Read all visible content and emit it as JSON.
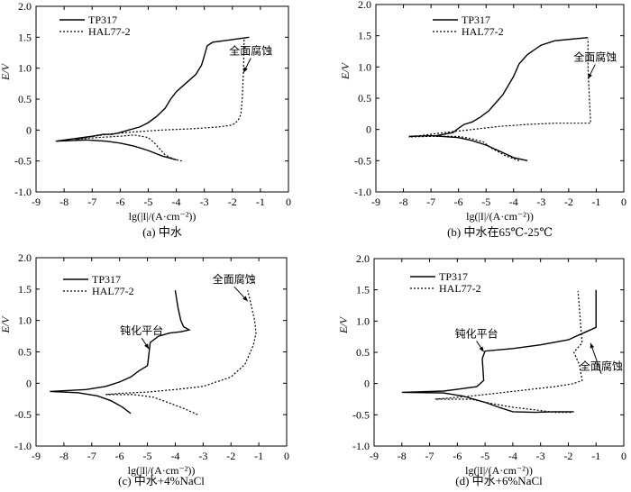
{
  "chart_data": [
    {
      "type": "line",
      "caption": "(a) 中水",
      "xlabel": "lg(|I|/(A·cm⁻²))",
      "ylabel": "E/V",
      "xlim": [
        -9,
        0
      ],
      "ylim": [
        -1.0,
        2.0
      ],
      "xticks": [
        "-9",
        "-8",
        "-7",
        "-6",
        "-5",
        "-4",
        "-3",
        "-2",
        "-1",
        "0"
      ],
      "yticks": [
        "-1.0",
        "-0.5",
        "0",
        "0.5",
        "1.0",
        "1.5",
        "2.0"
      ],
      "legend": [
        "TP317",
        "HAL77-2"
      ],
      "series": [
        {
          "name": "TP317",
          "style": "solid",
          "points": [
            [
              -4.0,
              -0.48
            ],
            [
              -4.5,
              -0.42
            ],
            [
              -5.0,
              -0.33
            ],
            [
              -5.5,
              -0.26
            ],
            [
              -6.0,
              -0.21
            ],
            [
              -6.5,
              -0.18
            ],
            [
              -7.2,
              -0.16
            ],
            [
              -8.3,
              -0.18
            ],
            [
              -7.0,
              -0.1
            ],
            [
              -6.6,
              -0.07
            ],
            [
              -6.3,
              -0.07
            ],
            [
              -6.1,
              -0.05
            ],
            [
              -5.7,
              0.0
            ],
            [
              -5.3,
              0.05
            ],
            [
              -5.0,
              0.12
            ],
            [
              -4.7,
              0.22
            ],
            [
              -4.4,
              0.35
            ],
            [
              -4.2,
              0.5
            ],
            [
              -4.0,
              0.62
            ],
            [
              -3.8,
              0.7
            ],
            [
              -3.6,
              0.78
            ],
            [
              -3.3,
              0.9
            ],
            [
              -3.1,
              1.05
            ],
            [
              -3.0,
              1.2
            ],
            [
              -2.9,
              1.36
            ],
            [
              -2.7,
              1.42
            ],
            [
              -2.2,
              1.45
            ],
            [
              -1.4,
              1.5
            ]
          ]
        },
        {
          "name": "HAL77-2",
          "style": "dotted",
          "points": [
            [
              -3.8,
              -0.5
            ],
            [
              -4.1,
              -0.47
            ],
            [
              -4.4,
              -0.4
            ],
            [
              -4.6,
              -0.3
            ],
            [
              -4.8,
              -0.2
            ],
            [
              -5.0,
              -0.12
            ],
            [
              -5.5,
              -0.08
            ],
            [
              -6.0,
              -0.1
            ],
            [
              -6.8,
              -0.12
            ],
            [
              -7.6,
              -0.15
            ],
            [
              -6.5,
              -0.07
            ],
            [
              -5.5,
              -0.03
            ],
            [
              -4.5,
              0.0
            ],
            [
              -3.5,
              0.02
            ],
            [
              -2.5,
              0.05
            ],
            [
              -2.0,
              0.08
            ],
            [
              -1.8,
              0.15
            ],
            [
              -1.7,
              0.25
            ],
            [
              -1.65,
              0.5
            ],
            [
              -1.6,
              1.0
            ],
            [
              -1.58,
              1.48
            ]
          ]
        }
      ],
      "annotations": [
        {
          "text": "全面腐蚀",
          "at": [
            -1.6,
            0.9
          ]
        }
      ]
    },
    {
      "type": "line",
      "caption": "(b) 中水在65℃-25℃",
      "xlabel": "lg(|I|/(A·cm⁻²))",
      "ylabel": "E/V",
      "xlim": [
        -9,
        0
      ],
      "ylim": [
        -1.0,
        2.0
      ],
      "xticks": [
        "-9",
        "-8",
        "-7",
        "-6",
        "-5",
        "-4",
        "-3",
        "-2",
        "-1",
        "0"
      ],
      "yticks": [
        "-1.0",
        "-0.5",
        "0",
        "0.5",
        "1.0",
        "1.5",
        "2.0"
      ],
      "legend": [
        "TP317",
        "HAL77-2"
      ],
      "series": [
        {
          "name": "TP317",
          "style": "solid",
          "points": [
            [
              -3.5,
              -0.5
            ],
            [
              -4.0,
              -0.45
            ],
            [
              -4.5,
              -0.35
            ],
            [
              -5.0,
              -0.25
            ],
            [
              -5.5,
              -0.18
            ],
            [
              -6.0,
              -0.13
            ],
            [
              -7.0,
              -0.1
            ],
            [
              -7.8,
              -0.11
            ],
            [
              -6.8,
              -0.1
            ],
            [
              -6.2,
              -0.05
            ],
            [
              -6.0,
              0.02
            ],
            [
              -5.8,
              0.08
            ],
            [
              -5.5,
              0.12
            ],
            [
              -5.2,
              0.2
            ],
            [
              -4.9,
              0.3
            ],
            [
              -4.6,
              0.45
            ],
            [
              -4.4,
              0.55
            ],
            [
              -4.2,
              0.7
            ],
            [
              -4.0,
              0.85
            ],
            [
              -3.8,
              1.05
            ],
            [
              -3.5,
              1.2
            ],
            [
              -3.0,
              1.35
            ],
            [
              -2.5,
              1.42
            ],
            [
              -1.3,
              1.47
            ]
          ]
        },
        {
          "name": "HAL77-2",
          "style": "dotted",
          "points": [
            [
              -3.8,
              -0.5
            ],
            [
              -4.3,
              -0.42
            ],
            [
              -4.8,
              -0.3
            ],
            [
              -5.1,
              -0.2
            ],
            [
              -5.5,
              -0.15
            ],
            [
              -6.0,
              -0.11
            ],
            [
              -7.0,
              -0.11
            ],
            [
              -7.8,
              -0.12
            ],
            [
              -6.5,
              -0.05
            ],
            [
              -5.5,
              0.0
            ],
            [
              -4.5,
              0.05
            ],
            [
              -3.5,
              0.08
            ],
            [
              -2.5,
              0.1
            ],
            [
              -1.2,
              0.1
            ],
            [
              -1.25,
              0.5
            ],
            [
              -1.3,
              1.0
            ],
            [
              -1.3,
              1.45
            ]
          ]
        }
      ],
      "annotations": [
        {
          "text": "全面腐蚀",
          "at": [
            -1.3,
            0.78
          ]
        }
      ]
    },
    {
      "type": "line",
      "caption": "(c) 中水+4%NaCl",
      "xlabel": "lg(|I|/(A·cm⁻²))",
      "ylabel": "E/V",
      "xlim": [
        -9,
        0
      ],
      "ylim": [
        -1.0,
        2.0
      ],
      "xticks": [
        "-9",
        "-8",
        "-7",
        "-6",
        "-5",
        "-4",
        "-3",
        "-2",
        "-1",
        "0"
      ],
      "yticks": [
        "-1.0",
        "-0.5",
        "0",
        "0.5",
        "1.0",
        "1.5",
        "2.0"
      ],
      "legend": [
        "TP317",
        "HAL77-2"
      ],
      "series": [
        {
          "name": "TP317",
          "style": "solid",
          "points": [
            [
              -5.6,
              -0.48
            ],
            [
              -5.9,
              -0.38
            ],
            [
              -6.3,
              -0.28
            ],
            [
              -6.8,
              -0.2
            ],
            [
              -7.5,
              -0.15
            ],
            [
              -8.5,
              -0.13
            ],
            [
              -7.2,
              -0.1
            ],
            [
              -6.5,
              -0.05
            ],
            [
              -6.0,
              0.02
            ],
            [
              -5.6,
              0.1
            ],
            [
              -5.3,
              0.2
            ],
            [
              -5.0,
              0.28
            ],
            [
              -4.95,
              0.45
            ],
            [
              -4.9,
              0.65
            ],
            [
              -4.6,
              0.75
            ],
            [
              -4.2,
              0.8
            ],
            [
              -3.8,
              0.82
            ],
            [
              -3.5,
              0.85
            ],
            [
              -3.7,
              0.9
            ],
            [
              -3.8,
              1.0
            ],
            [
              -3.9,
              1.2
            ],
            [
              -4.0,
              1.48
            ]
          ]
        },
        {
          "name": "HAL77-2",
          "style": "dotted",
          "points": [
            [
              -3.2,
              -0.5
            ],
            [
              -3.7,
              -0.4
            ],
            [
              -4.3,
              -0.3
            ],
            [
              -4.8,
              -0.22
            ],
            [
              -5.5,
              -0.18
            ],
            [
              -6.5,
              -0.18
            ],
            [
              -6.0,
              -0.16
            ],
            [
              -5.0,
              -0.14
            ],
            [
              -4.0,
              -0.1
            ],
            [
              -3.0,
              -0.05
            ],
            [
              -2.0,
              0.1
            ],
            [
              -1.5,
              0.3
            ],
            [
              -1.2,
              0.6
            ],
            [
              -1.1,
              0.8
            ],
            [
              -1.15,
              1.0
            ],
            [
              -1.3,
              1.3
            ],
            [
              -1.4,
              1.48
            ]
          ]
        }
      ],
      "annotations": [
        {
          "text": "全面腐蚀",
          "at": [
            -1.4,
            1.28
          ]
        },
        {
          "text": "钝化平台",
          "at": [
            -4.95,
            0.52
          ]
        }
      ]
    },
    {
      "type": "line",
      "caption": "(d) 中水+6%NaCl",
      "xlabel": "lg(|I|/(A·cm⁻²))",
      "ylabel": "E/V",
      "xlim": [
        -9,
        0
      ],
      "ylim": [
        -1.0,
        2.0
      ],
      "xticks": [
        "-9",
        "-8",
        "-7",
        "-6",
        "-5",
        "-4",
        "-3",
        "-2",
        "-1",
        "0"
      ],
      "yticks": [
        "-1.0",
        "-0.5",
        "0",
        "0.5",
        "1.0",
        "1.5",
        "2.0"
      ],
      "legend": [
        "TP317",
        "HAL77-2"
      ],
      "series": [
        {
          "name": "TP317",
          "style": "solid",
          "points": [
            [
              -1.8,
              -0.45
            ],
            [
              -2.5,
              -0.45
            ],
            [
              -3.2,
              -0.46
            ],
            [
              -4.0,
              -0.45
            ],
            [
              -4.5,
              -0.38
            ],
            [
              -5.0,
              -0.3
            ],
            [
              -5.8,
              -0.2
            ],
            [
              -6.5,
              -0.15
            ],
            [
              -8.0,
              -0.14
            ],
            [
              -6.5,
              -0.12
            ],
            [
              -5.8,
              -0.08
            ],
            [
              -5.3,
              -0.05
            ],
            [
              -5.05,
              0.05
            ],
            [
              -5.1,
              0.4
            ],
            [
              -5.0,
              0.52
            ],
            [
              -4.5,
              0.54
            ],
            [
              -4.0,
              0.56
            ],
            [
              -3.0,
              0.62
            ],
            [
              -2.0,
              0.7
            ],
            [
              -1.5,
              0.8
            ],
            [
              -1.0,
              0.9
            ],
            [
              -1.0,
              1.2
            ],
            [
              -1.0,
              1.5
            ]
          ]
        },
        {
          "name": "HAL77-2",
          "style": "dotted",
          "points": [
            [
              -1.9,
              -0.46
            ],
            [
              -2.5,
              -0.46
            ],
            [
              -3.2,
              -0.42
            ],
            [
              -4.0,
              -0.38
            ],
            [
              -5.0,
              -0.3
            ],
            [
              -5.5,
              -0.25
            ],
            [
              -6.8,
              -0.25
            ],
            [
              -5.5,
              -0.2
            ],
            [
              -4.5,
              -0.15
            ],
            [
              -3.5,
              -0.1
            ],
            [
              -2.5,
              -0.05
            ],
            [
              -1.8,
              0.0
            ],
            [
              -1.5,
              0.05
            ],
            [
              -1.6,
              0.3
            ],
            [
              -1.8,
              0.5
            ],
            [
              -1.5,
              0.65
            ],
            [
              -1.55,
              0.9
            ],
            [
              -1.6,
              1.2
            ],
            [
              -1.65,
              1.48
            ]
          ]
        }
      ],
      "annotations": [
        {
          "text": "钝化平台",
          "at": [
            -5.05,
            0.48
          ]
        },
        {
          "text": "全面腐蚀",
          "at": [
            -1.2,
            0.62
          ]
        }
      ]
    }
  ]
}
